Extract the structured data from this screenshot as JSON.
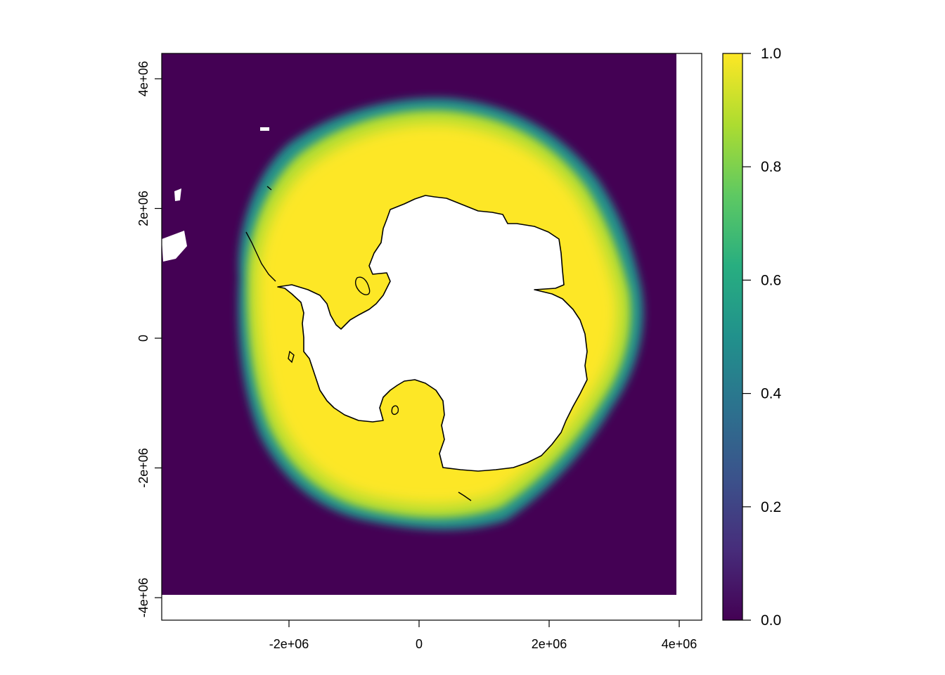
{
  "map": {
    "x_axis": {
      "ticks": [
        {
          "value": -2000000,
          "label": "-2e+06"
        },
        {
          "value": 0,
          "label": "0"
        },
        {
          "value": 2000000,
          "label": "2e+06"
        },
        {
          "value": 4000000,
          "label": "4e+06"
        }
      ]
    },
    "y_axis": {
      "ticks": [
        {
          "value": -4000000,
          "label": "-4e+06"
        },
        {
          "value": -2000000,
          "label": "-2e+06"
        },
        {
          "value": 0,
          "label": "0"
        },
        {
          "value": 2000000,
          "label": "2e+06"
        },
        {
          "value": 4000000,
          "label": "4e+06"
        }
      ]
    },
    "raster": {
      "variable_range": [
        0.0,
        1.0
      ],
      "ocean_value": 0.0,
      "pack_ice_value": 1.0,
      "land_color": "#ffffff"
    },
    "colorbar": {
      "ticks": [
        {
          "value": 0.0,
          "label": "0.0"
        },
        {
          "value": 0.2,
          "label": "0.2"
        },
        {
          "value": 0.4,
          "label": "0.4"
        },
        {
          "value": 0.6,
          "label": "0.6"
        },
        {
          "value": 0.8,
          "label": "0.8"
        },
        {
          "value": 1.0,
          "label": "1.0"
        }
      ],
      "palette": [
        "#440154",
        "#472d7b",
        "#3b528b",
        "#2c728e",
        "#21918c",
        "#28ae80",
        "#5ec962",
        "#addc30",
        "#fde725"
      ]
    },
    "colors": {
      "ocean": "#440154",
      "ice_core": "#fde725",
      "ice_mid": "#c9e020",
      "ice_edge": "#21918c",
      "coastline": "#000000"
    }
  }
}
